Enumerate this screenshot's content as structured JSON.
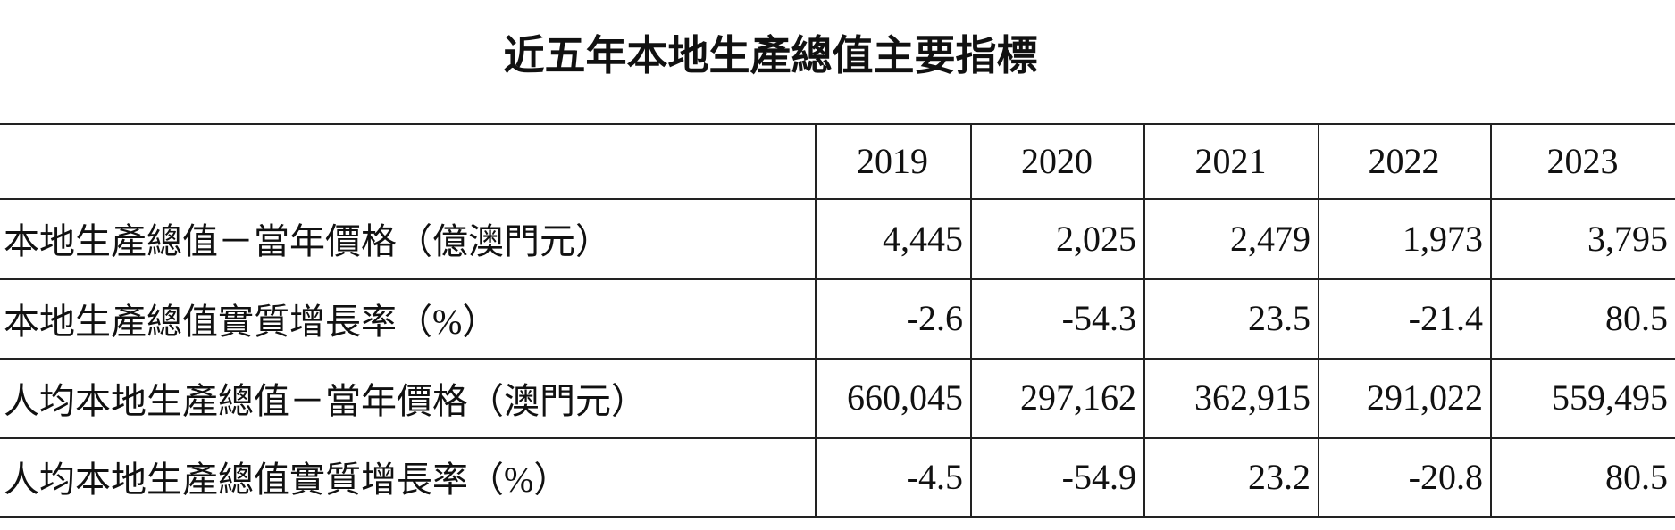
{
  "header": {
    "title": "近五年本地生產總值主要指標"
  },
  "table": {
    "columns": [
      "2019",
      "2020",
      "2021",
      "2022",
      "2023"
    ],
    "rows": [
      [
        "本地生產總值－當年價格（億澳門元）",
        "4,445",
        "2,025",
        "2,479",
        "1,973",
        "3,795"
      ],
      [
        "本地生產總值實質增長率（%）",
        "-2.6",
        "-54.3",
        "23.5",
        "-21.4",
        "80.5"
      ],
      [
        "人均本地生產總值－當年價格（澳門元）",
        "660,045",
        "297,162",
        "362,915",
        "291,022",
        "559,495"
      ],
      [
        "人均本地生產總值實質增長率（%）",
        "-4.5",
        "-54.9",
        "23.2",
        "-20.8",
        "80.5"
      ]
    ]
  }
}
